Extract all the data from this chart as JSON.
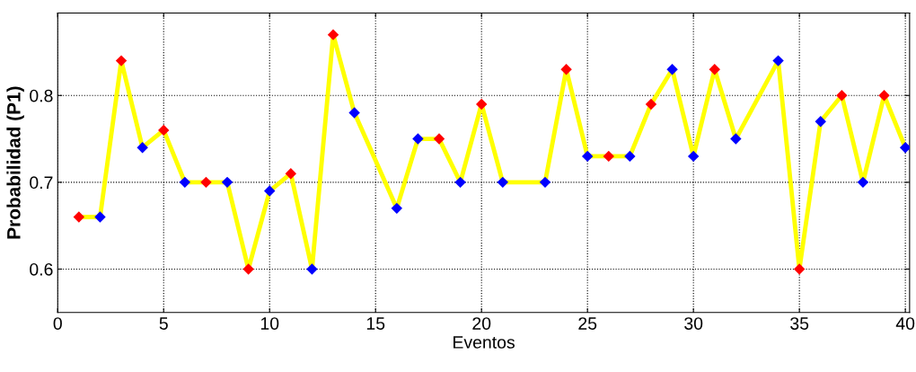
{
  "chart_data": {
    "type": "line",
    "xlabel": "Eventos",
    "ylabel": "Probabilidad (P1)",
    "xlim": [
      0,
      40.2
    ],
    "ylim": [
      0.55,
      0.895
    ],
    "xticks": [
      0,
      5,
      10,
      15,
      20,
      25,
      30,
      35,
      40
    ],
    "yticks": [
      0.6,
      0.7,
      0.8
    ],
    "grid": true,
    "series": [
      {
        "color": "#ffff00",
        "marker": "none",
        "x": [
          1,
          2,
          3,
          4,
          5,
          6,
          7,
          8,
          9,
          10,
          11,
          12,
          13,
          14,
          16,
          17,
          18,
          19,
          20,
          21,
          23,
          24,
          25,
          26,
          27,
          28,
          29,
          30,
          31,
          32,
          34,
          35,
          36,
          37,
          38,
          39,
          40
        ],
        "values": [
          0.66,
          0.66,
          0.84,
          0.74,
          0.76,
          0.7,
          0.7,
          0.7,
          0.6,
          0.69,
          0.71,
          0.6,
          0.87,
          0.78,
          0.67,
          0.75,
          0.75,
          0.7,
          0.79,
          0.7,
          0.7,
          0.83,
          0.73,
          0.73,
          0.73,
          0.79,
          0.83,
          0.73,
          0.83,
          0.75,
          0.84,
          0.6,
          0.77,
          0.8,
          0.7,
          0.8,
          0.74
        ]
      },
      {
        "type": "scatter",
        "color": "#ff0000",
        "marker": "diamond",
        "x": [
          1,
          3,
          5,
          7,
          9,
          11,
          13,
          18,
          20,
          24,
          26,
          28,
          31,
          35,
          37,
          39
        ],
        "values": [
          0.66,
          0.84,
          0.76,
          0.7,
          0.6,
          0.71,
          0.87,
          0.75,
          0.79,
          0.83,
          0.73,
          0.79,
          0.83,
          0.6,
          0.8,
          0.8
        ]
      },
      {
        "type": "scatter",
        "color": "#0000ff",
        "marker": "diamond",
        "x": [
          2,
          4,
          6,
          8,
          10,
          12,
          14,
          16,
          17,
          19,
          21,
          23,
          25,
          27,
          29,
          30,
          32,
          34,
          36,
          38,
          40
        ],
        "values": [
          0.66,
          0.74,
          0.7,
          0.7,
          0.69,
          0.6,
          0.78,
          0.67,
          0.75,
          0.7,
          0.7,
          0.7,
          0.73,
          0.73,
          0.83,
          0.73,
          0.75,
          0.84,
          0.77,
          0.7,
          0.74
        ]
      }
    ]
  }
}
